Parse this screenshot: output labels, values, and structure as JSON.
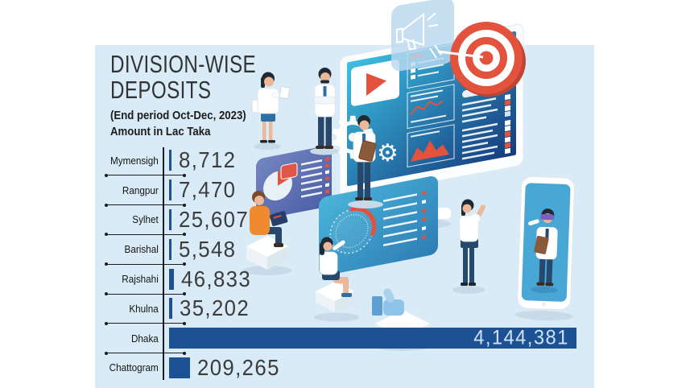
{
  "header": {
    "title_line1": "DIVISION-WISE",
    "title_line2": "DEPOSITS",
    "period": "(End period Oct-Dec, 2023)",
    "unit": "Amount in Lac Taka"
  },
  "chart_data": {
    "type": "bar",
    "orientation": "horizontal",
    "title": "DIVISION-WISE DEPOSITS",
    "subtitle": "(End period Oct-Dec, 2023)",
    "unit": "Amount in Lac Taka",
    "categories": [
      "Mymensigh",
      "Rangpur",
      "Sylhet",
      "Barishal",
      "Rajshahi",
      "Khulna",
      "Dhaka",
      "Chattogram"
    ],
    "values": [
      8712,
      7470,
      25607,
      5548,
      46833,
      35202,
      4144381,
      209265
    ],
    "value_labels": [
      "8,712",
      "7,470",
      "25,607",
      "5,548",
      "46,833",
      "35,202",
      "4,144,381",
      "209,265"
    ],
    "max_value": 4144381,
    "xlim": [
      0,
      4144381
    ],
    "value_label_inside_bar": "Dhaka",
    "grid": false,
    "legend": false
  },
  "illustration": {
    "theme": "isometric digital-marketing analytics team around a large dashboard screen",
    "elements": [
      "monitor-dashboard",
      "megaphone-icon",
      "target-icon",
      "arrow-icon",
      "play-icon",
      "gear-icon",
      "pie-chart-card",
      "gauge-chart-card",
      "like-icon",
      "smartphone-video-call",
      "people-figures"
    ],
    "gear_glyph": "⚙",
    "gear_glyph_small": "⚙"
  },
  "colors": {
    "pageBg": "#ffffff",
    "panelBg": "#d8ebf7",
    "bar": "#1c5294",
    "axis": "#1c1c1c",
    "label": "#141414",
    "value": "#3c3c3c",
    "barValue": "#cfe2f4",
    "title": "#333333",
    "red": "#e2523d",
    "redDark": "#bf4433",
    "screenCyan": "#3cc0e2",
    "screenNavy": "#153a7d",
    "cardPurpleA": "#7585c1",
    "cardPurpleB": "#4a5ea6",
    "cardTealA": "#4ab5da",
    "cardTealB": "#2e7cb5",
    "megaCard": "#b9d9ef",
    "phoneScreen": "#49a7d6",
    "skin": "#ecb899",
    "navySuit": "#28476b",
    "hair": "#1f2a33",
    "orange": "#ef8a2e",
    "brownHair": "#7a4a2b",
    "clipboard": "#8a5a3b",
    "likeBlue": "#8ec3ea",
    "likeBlueDark": "#5f9fd2",
    "shadow": "#c6dae8",
    "standGray": "#e6edf3",
    "white": "#ffffff"
  }
}
